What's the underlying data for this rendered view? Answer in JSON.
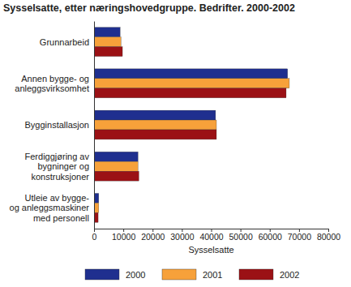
{
  "chart_data": {
    "type": "bar",
    "orientation": "horizontal",
    "title": "Sysselsatte, etter næringshovedgruppe. Bedrifter. 2000-2002",
    "x_label": "Sysselsatte",
    "categories": [
      "Grunnarbeid",
      "Annen bygge- og anleggsvirksomhet",
      "Bygginstallasjon",
      "Ferdiggjøring av bygninger og konstruksjoner",
      "Utleie av bygge- og anleggsmaskiner med personell"
    ],
    "series": [
      {
        "name": "2000",
        "color": "#1f2f8f",
        "values": [
          8900,
          66100,
          41500,
          15000,
          1600
        ]
      },
      {
        "name": "2001",
        "color": "#f7a13a",
        "values": [
          9200,
          66700,
          41800,
          15000,
          1600
        ]
      },
      {
        "name": "2002",
        "color": "#9b1115",
        "values": [
          9700,
          65600,
          41800,
          15300,
          1400
        ]
      }
    ],
    "xlim": [
      0,
      80000
    ],
    "xticks": [
      0,
      10000,
      20000,
      30000,
      40000,
      50000,
      60000,
      70000,
      80000
    ],
    "grid": false,
    "legend": "bottom"
  }
}
